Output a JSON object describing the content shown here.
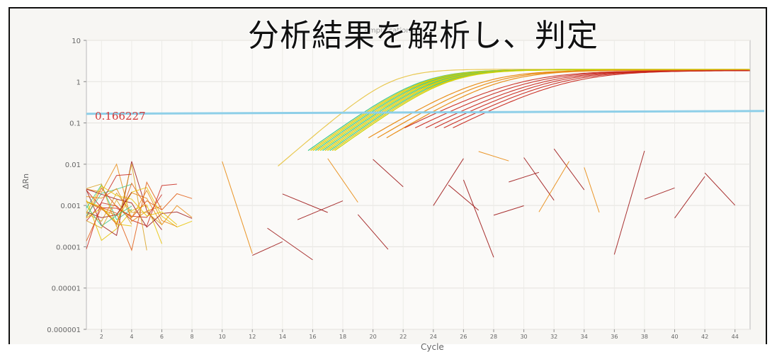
{
  "slide": {
    "title": "分析結果を解析し、判定"
  },
  "chart_data": {
    "type": "line",
    "title": "Amplification Plot",
    "xlabel": "Cycle",
    "ylabel": "ΔRn",
    "yscale": "log",
    "xlim": [
      1,
      45
    ],
    "ylim": [
      1e-06,
      10
    ],
    "x_ticks": [
      "2",
      "4",
      "6",
      "8",
      "10",
      "12",
      "14",
      "16",
      "18",
      "20",
      "22",
      "24",
      "26",
      "28",
      "30",
      "32",
      "34",
      "36",
      "38",
      "40",
      "42",
      "44"
    ],
    "y_ticks": [
      "10",
      "1",
      "0.1",
      "0.01",
      "0.001",
      "0.0001",
      "0.00001",
      "0.000001"
    ],
    "threshold": {
      "label": "0.166227",
      "value": 0.166227,
      "color": "#8ecfe8"
    },
    "grid": true,
    "colors": {
      "yellow": "#e6c200",
      "orange": "#e88a10",
      "red": "#c8281e",
      "green": "#3cc98a",
      "darkred": "#9e1a1a"
    }
  }
}
